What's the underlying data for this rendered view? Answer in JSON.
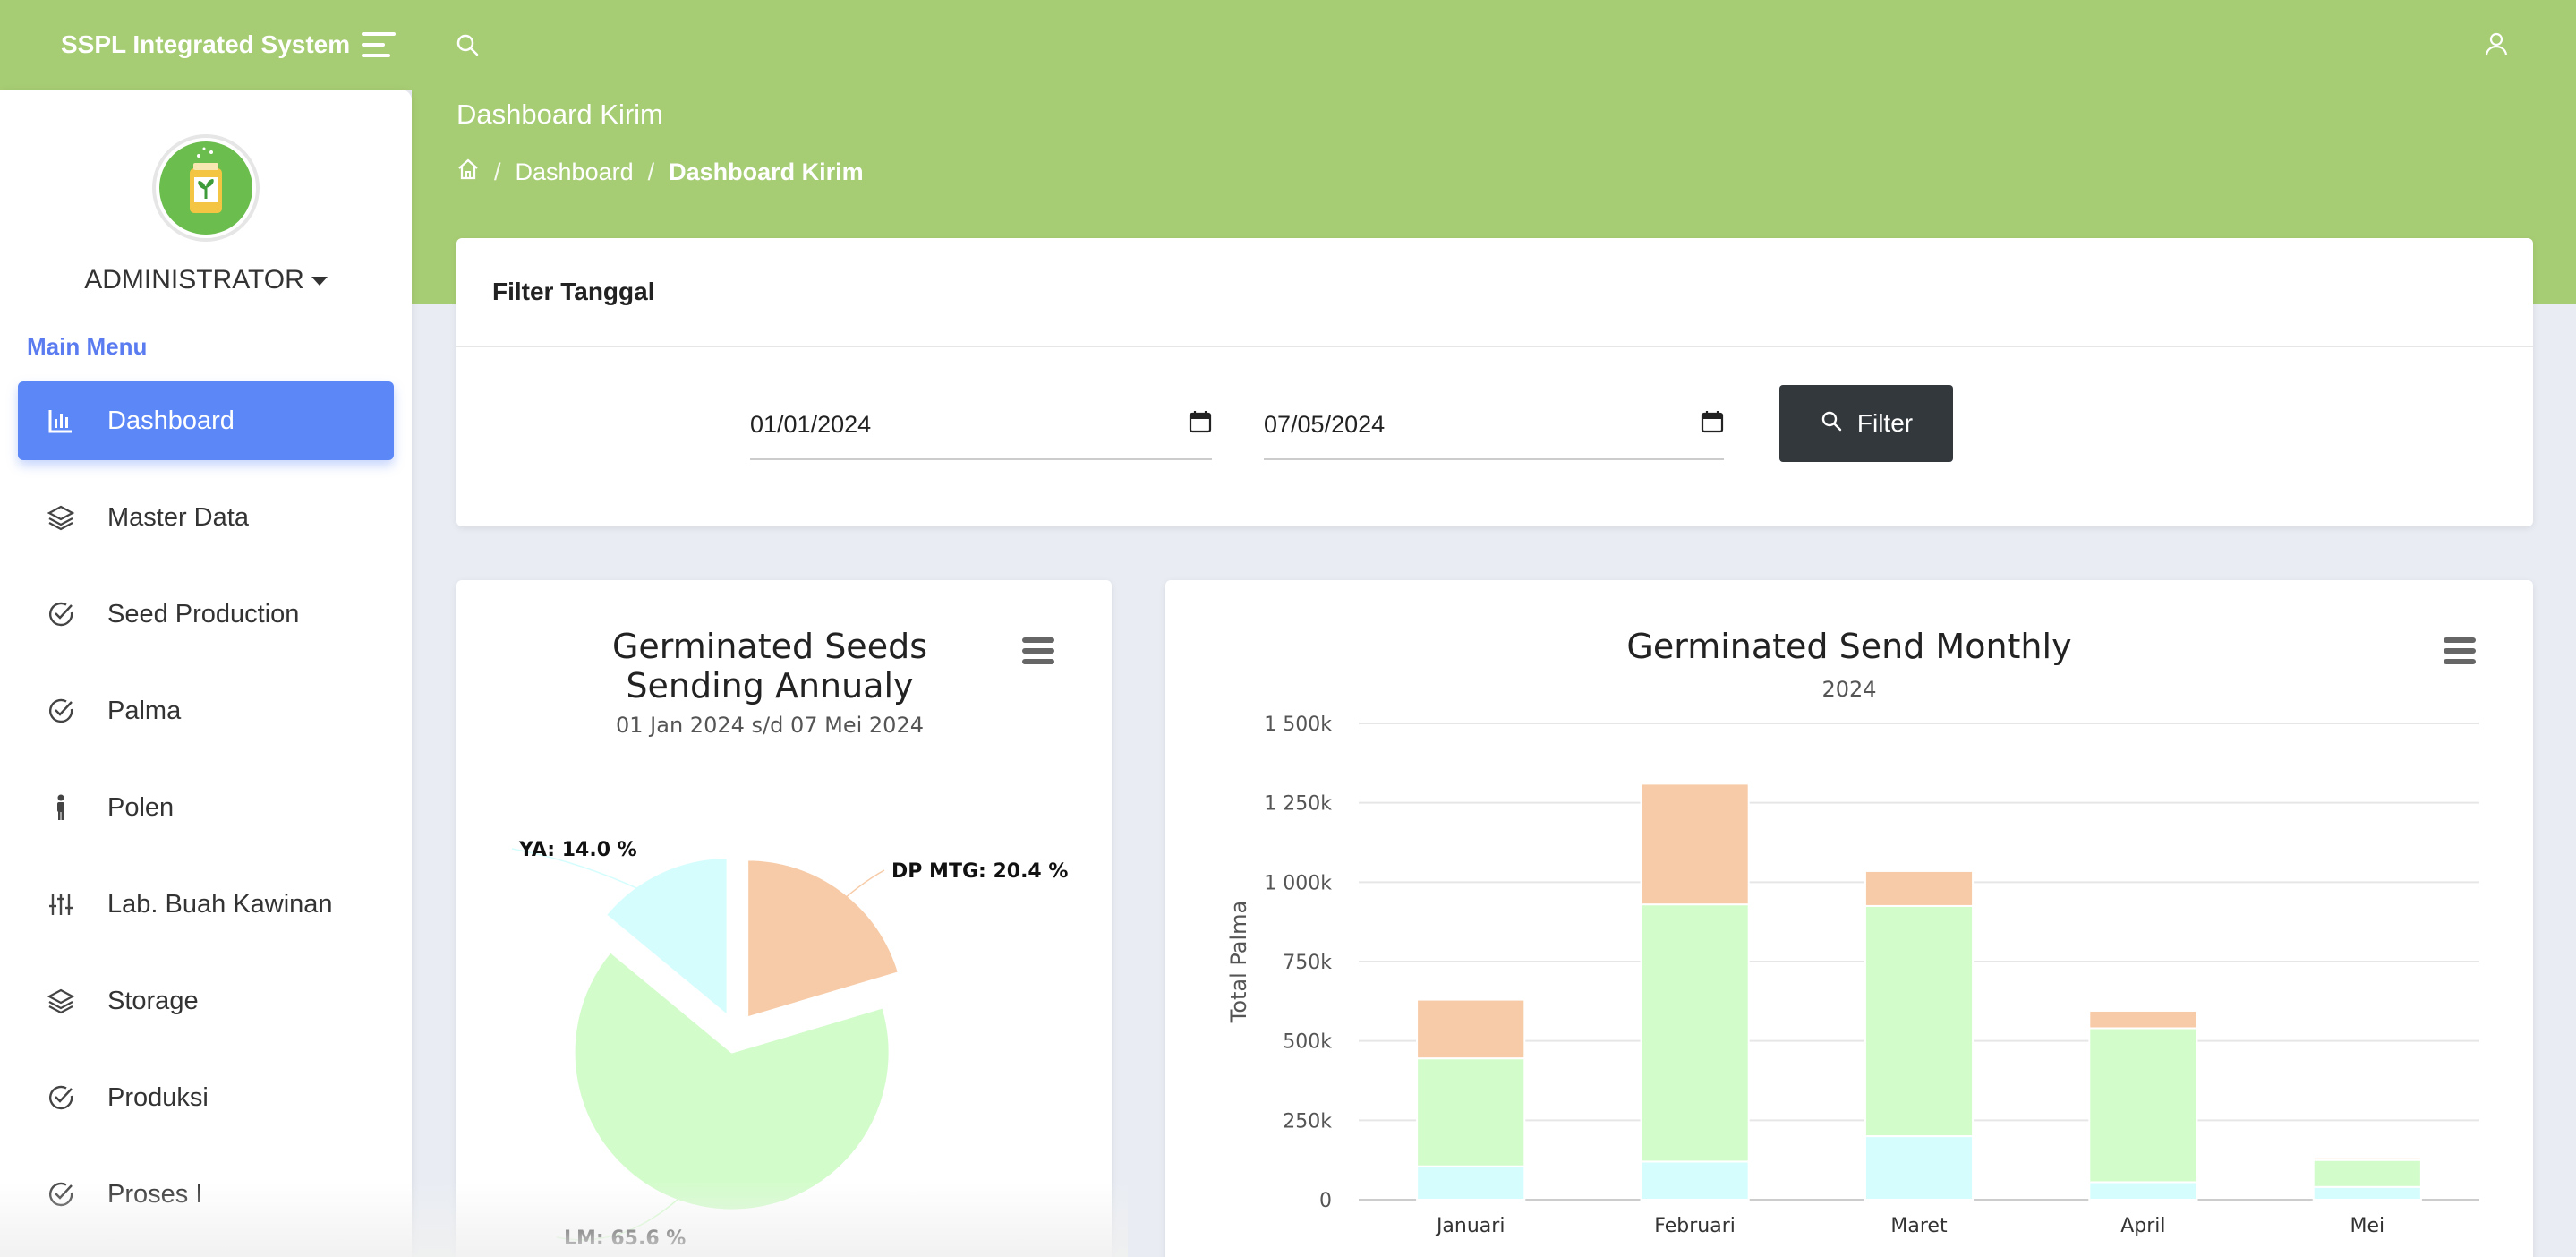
{
  "app": {
    "brand": "SSPL Integrated System"
  },
  "header": {
    "title": "Dashboard Kirim",
    "breadcrumb": [
      "Dashboard",
      "Dashboard Kirim"
    ]
  },
  "user": {
    "name": "ADMINISTRATOR"
  },
  "sidebar": {
    "menu_title": "Main Menu",
    "items": [
      {
        "label": "Dashboard",
        "icon": "bar-chart-icon",
        "active": true
      },
      {
        "label": "Master Data",
        "icon": "layers-icon"
      },
      {
        "label": "Seed Production",
        "icon": "check-circle-icon"
      },
      {
        "label": "Palma",
        "icon": "check-circle-icon"
      },
      {
        "label": "Polen",
        "icon": "person-icon"
      },
      {
        "label": "Lab. Buah Kawinan",
        "icon": "sliders-icon"
      },
      {
        "label": "Storage",
        "icon": "layers-icon"
      },
      {
        "label": "Produksi",
        "icon": "check-circle-icon"
      },
      {
        "label": "Proses I",
        "icon": "check-circle-icon"
      }
    ]
  },
  "filter": {
    "title": "Filter Tanggal",
    "date_from": "01/01/2024",
    "date_to": "07/05/2024",
    "button_label": "Filter"
  },
  "colors": {
    "green_header": "#a7cd74",
    "accent_blue": "#5b87f7",
    "dp_mtg": "#f7cba7",
    "lm": "#d3fccb",
    "ya": "#d6fdfd"
  },
  "chart_data": [
    {
      "type": "pie",
      "title": "Germinated Seeds Sending Annualy",
      "subtitle": "01 Jan 2024 s/d 07 Mei 2024",
      "slices": [
        {
          "name": "DP MTG",
          "value": 20.4,
          "label": "DP MTG: 20.4 %",
          "color": "#f7cba7"
        },
        {
          "name": "LM",
          "value": 65.6,
          "label": "LM: 65.6 %",
          "color": "#d3fccb"
        },
        {
          "name": "YA",
          "value": 14.0,
          "label": "YA: 14.0 %",
          "color": "#d6fdfd"
        }
      ]
    },
    {
      "type": "bar",
      "stacked": true,
      "title": "Germinated Send Monthly",
      "subtitle": "2024",
      "ylabel": "Total Palma",
      "ylim": [
        0,
        1500000
      ],
      "yticks": [
        "0",
        "250k",
        "500k",
        "750k",
        "1 000k",
        "1 250k",
        "1 500k"
      ],
      "categories": [
        "Januari",
        "Februari",
        "Maret",
        "April",
        "Mei"
      ],
      "series": [
        {
          "name": "YA",
          "color": "#d6fdfd",
          "values": [
            105000,
            120000,
            200000,
            55000,
            40000
          ]
        },
        {
          "name": "LM",
          "color": "#d3fccb",
          "values": [
            340000,
            810000,
            725000,
            485000,
            85000
          ]
        },
        {
          "name": "DP MTG",
          "color": "#f7cba7",
          "values": [
            185000,
            380000,
            110000,
            55000,
            8000
          ]
        }
      ]
    }
  ]
}
